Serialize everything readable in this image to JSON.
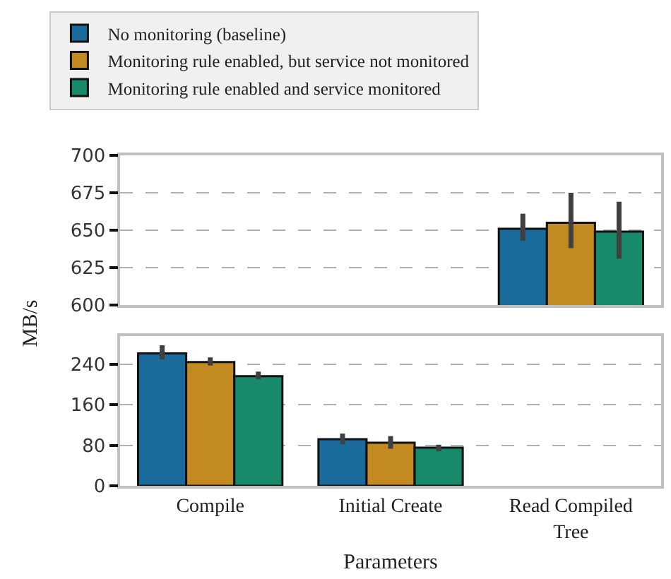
{
  "chart_data": [
    {
      "type": "bar",
      "categories": [
        null,
        null,
        null
      ],
      "legend": "top",
      "grid": "y",
      "tick_labels": "y",
      "ylim": [
        600,
        700
      ],
      "yticks": [
        600,
        625,
        650,
        675,
        700
      ],
      "series": [
        {
          "name": "No monitoring (baseline)",
          "color": "#1a6b9c",
          "values": [
            null,
            null,
            651
          ],
          "errors": [
            null,
            null,
            [
              643,
              661
            ]
          ]
        },
        {
          "name": "Monitoring rule enabled, but service not monitored",
          "color": "#c48a22",
          "values": [
            null,
            null,
            655
          ],
          "errors": [
            null,
            null,
            [
              638,
              675
            ]
          ]
        },
        {
          "name": "Monitoring rule enabled and service monitored",
          "color": "#168a6a",
          "values": [
            null,
            null,
            649
          ],
          "errors": [
            null,
            null,
            [
              631,
              669
            ]
          ]
        }
      ]
    },
    {
      "type": "bar",
      "categories": [
        "Compile",
        "Initial Create",
        "Read Compiled Tree"
      ],
      "grid": "y",
      "xlabel": "Parameters",
      "ylabel": "MB/s",
      "ylim": [
        0,
        295
      ],
      "yticks": [
        0,
        80,
        160,
        240
      ],
      "series": [
        {
          "color": "#1a6b9c",
          "values": [
            261,
            92,
            null
          ],
          "errors": [
            [
              249,
              277
            ],
            [
              82,
              103
            ],
            null
          ]
        },
        {
          "color": "#c48a22",
          "values": [
            244,
            85,
            null
          ],
          "errors": [
            [
              237,
              253
            ],
            [
              73,
              98
            ],
            null
          ]
        },
        {
          "color": "#168a6a",
          "values": [
            216,
            75,
            null
          ],
          "errors": [
            [
              210,
              225
            ],
            [
              68,
              81
            ],
            null
          ]
        }
      ]
    }
  ]
}
